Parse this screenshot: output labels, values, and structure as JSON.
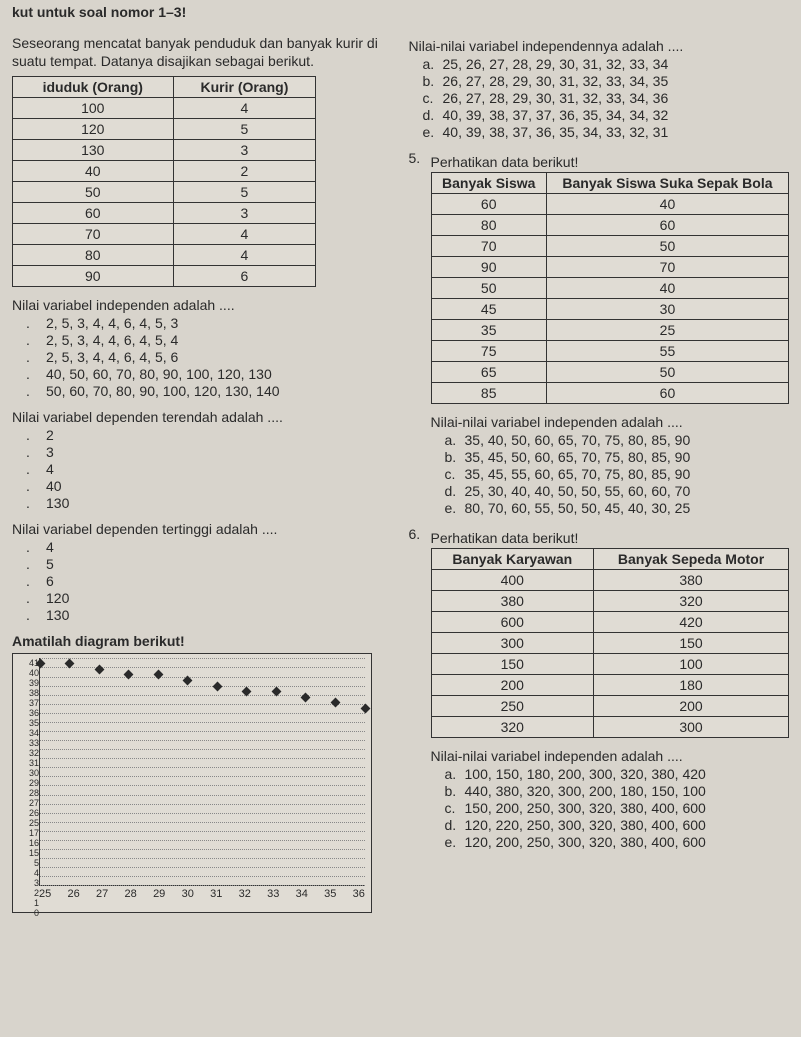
{
  "header_fragment": "kut untuk soal nomor 1–3!",
  "intro_para": "Seseorang mencatat banyak penduduk dan banyak kurir di suatu tempat. Datanya disajikan sebagai berikut.",
  "table1": {
    "headers": [
      "iduduk (Orang)",
      "Kurir (Orang)"
    ],
    "rows": [
      [
        "100",
        "4"
      ],
      [
        "120",
        "5"
      ],
      [
        "130",
        "3"
      ],
      [
        "40",
        "2"
      ],
      [
        "50",
        "5"
      ],
      [
        "60",
        "3"
      ],
      [
        "70",
        "4"
      ],
      [
        "80",
        "4"
      ],
      [
        "90",
        "6"
      ]
    ]
  },
  "q1": {
    "text": "Nilai variabel independen adalah ....",
    "opts": [
      {
        "l": ".",
        "t": "2, 5, 3, 4, 4, 6, 4, 5, 3"
      },
      {
        "l": ".",
        "t": "2, 5, 3, 4, 4, 6, 4, 5, 4"
      },
      {
        "l": ".",
        "t": "2, 5, 3, 4, 4, 6, 4, 5, 6"
      },
      {
        "l": ".",
        "t": "40, 50, 60, 70, 80, 90, 100, 120, 130"
      },
      {
        "l": ".",
        "t": "50, 60, 70, 80, 90, 100, 120, 130, 140"
      }
    ]
  },
  "q2": {
    "text": "Nilai variabel dependen terendah adalah ....",
    "opts": [
      {
        "l": ".",
        "t": "2"
      },
      {
        "l": ".",
        "t": "3"
      },
      {
        "l": ".",
        "t": "4"
      },
      {
        "l": ".",
        "t": "40"
      },
      {
        "l": ".",
        "t": "130"
      }
    ]
  },
  "q3": {
    "text": "Nilai variabel dependen tertinggi adalah ....",
    "opts": [
      {
        "l": ".",
        "t": "4"
      },
      {
        "l": ".",
        "t": "5"
      },
      {
        "l": ".",
        "t": "6"
      },
      {
        "l": ".",
        "t": "120"
      },
      {
        "l": ".",
        "t": "130"
      }
    ]
  },
  "chart_title": "Amatilah diagram berikut!",
  "chart": {
    "type": "scatter",
    "x_values": [
      25,
      26,
      27,
      28,
      29,
      30,
      31,
      32,
      33,
      34,
      35,
      36
    ],
    "y_ticks": [
      0,
      1,
      2,
      3,
      4,
      5,
      15,
      16,
      17,
      25,
      26,
      27,
      28,
      29,
      30,
      31,
      32,
      33,
      34,
      35,
      36,
      37,
      38,
      39,
      40,
      41
    ],
    "y_display_ticks": [
      "41",
      "40",
      "39",
      "38",
      "37",
      "36",
      "35",
      "34",
      "33",
      "32",
      "31",
      "30",
      "29",
      "28",
      "27",
      "26",
      "25",
      "17",
      "16",
      "15",
      "5",
      "4",
      "3",
      "2",
      "1",
      "0"
    ],
    "points": [
      {
        "x": 25,
        "y": 40
      },
      {
        "x": 26,
        "y": 40
      },
      {
        "x": 27,
        "y": 39
      },
      {
        "x": 28,
        "y": 38
      },
      {
        "x": 29,
        "y": 38
      },
      {
        "x": 30,
        "y": 37
      },
      {
        "x": 31,
        "y": 36
      },
      {
        "x": 32,
        "y": 35
      },
      {
        "x": 33,
        "y": 35
      },
      {
        "x": 34,
        "y": 34
      },
      {
        "x": 35,
        "y": 33
      },
      {
        "x": 36,
        "y": 32
      }
    ],
    "xlim": [
      25,
      36
    ],
    "ylim": [
      0,
      41
    ],
    "grid_color": "#888888",
    "dot_color": "#2a2a2a",
    "background_color": "#e0dcd4"
  },
  "q4_top": {
    "text": "Nilai-nilai variabel independennya adalah ....",
    "opts": [
      {
        "l": "a.",
        "t": "25, 26, 27, 28, 29, 30, 31, 32, 33, 34"
      },
      {
        "l": "b.",
        "t": "26, 27, 28, 29, 30, 31, 32, 33, 34, 35"
      },
      {
        "l": "c.",
        "t": "26, 27, 28, 29, 30, 31, 32, 33, 34, 36"
      },
      {
        "l": "d.",
        "t": "40, 39, 38, 37, 37, 36, 35, 34, 34, 32"
      },
      {
        "l": "e.",
        "t": "40, 39, 38, 37, 36, 35, 34, 33, 32, 31"
      }
    ]
  },
  "q5": {
    "num": "5.",
    "text": "Perhatikan data berikut!",
    "table": {
      "headers": [
        "Banyak Siswa",
        "Banyak Siswa Suka Sepak Bola"
      ],
      "rows": [
        [
          "60",
          "40"
        ],
        [
          "80",
          "60"
        ],
        [
          "70",
          "50"
        ],
        [
          "90",
          "70"
        ],
        [
          "50",
          "40"
        ],
        [
          "45",
          "30"
        ],
        [
          "35",
          "25"
        ],
        [
          "75",
          "55"
        ],
        [
          "65",
          "50"
        ],
        [
          "85",
          "60"
        ]
      ]
    },
    "qtext": "Nilai-nilai variabel independen adalah ....",
    "opts": [
      {
        "l": "a.",
        "t": "35, 40, 50, 60, 65, 70, 75, 80, 85, 90"
      },
      {
        "l": "b.",
        "t": "35, 45, 50, 60, 65, 70, 75, 80, 85, 90"
      },
      {
        "l": "c.",
        "t": "35, 45, 55, 60, 65, 70, 75, 80, 85, 90"
      },
      {
        "l": "d.",
        "t": "25, 30, 40, 40, 50, 50, 55, 60, 60, 70"
      },
      {
        "l": "e.",
        "t": "80, 70, 60, 55, 50, 50, 45, 40, 30, 25"
      }
    ]
  },
  "q6": {
    "num": "6.",
    "text": "Perhatikan data berikut!",
    "table": {
      "headers": [
        "Banyak Karyawan",
        "Banyak Sepeda Motor"
      ],
      "rows": [
        [
          "400",
          "380"
        ],
        [
          "380",
          "320"
        ],
        [
          "600",
          "420"
        ],
        [
          "300",
          "150"
        ],
        [
          "150",
          "100"
        ],
        [
          "200",
          "180"
        ],
        [
          "250",
          "200"
        ],
        [
          "320",
          "300"
        ]
      ]
    },
    "qtext": "Nilai-nilai variabel independen adalah ....",
    "opts": [
      {
        "l": "a.",
        "t": "100, 150, 180, 200, 300, 320, 380, 420"
      },
      {
        "l": "b.",
        "t": "440, 380, 320, 300, 200, 180, 150, 100"
      },
      {
        "l": "c.",
        "t": "150, 200, 250, 300, 320, 380, 400, 600"
      },
      {
        "l": "d.",
        "t": "120, 220, 250, 300, 320, 380, 400, 600"
      },
      {
        "l": "e.",
        "t": "120, 200, 250, 300, 320, 380, 400, 600"
      }
    ]
  }
}
